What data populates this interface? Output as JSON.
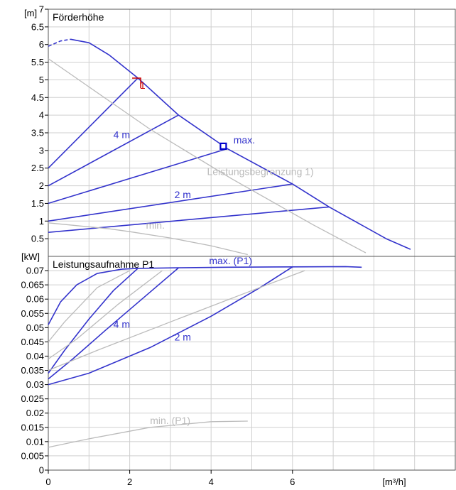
{
  "chart_data": [
    {
      "type": "line",
      "title": "Förderhöhe",
      "ylabel": "[m]",
      "xlabel": "[m³/h]",
      "xlim": [
        0,
        10
      ],
      "ylim": [
        0,
        7
      ],
      "x_ticks": [
        "0",
        "2",
        "4",
        "6"
      ],
      "y_ticks": [
        "0.5",
        "1",
        "1.5",
        "2",
        "2.5",
        "3",
        "3.5",
        "4",
        "4.5",
        "5",
        "5.5",
        "6",
        "6.5",
        "7"
      ],
      "grid": true,
      "series": [
        {
          "name": "max.",
          "color": "#3333cc",
          "x": [
            0.55,
            1.0,
            1.5,
            2.2,
            3.2,
            4.4,
            6.0,
            6.9,
            8.3,
            8.9
          ],
          "y": [
            6.15,
            6.05,
            5.7,
            5.05,
            4.0,
            3.05,
            2.05,
            1.4,
            0.5,
            0.2
          ]
        },
        {
          "name": "max.-dashed",
          "color": "#3333cc",
          "dashed": true,
          "x": [
            0.0,
            0.3,
            0.55
          ],
          "y": [
            5.95,
            6.1,
            6.15
          ]
        },
        {
          "name": "4 m",
          "color": "#3333cc",
          "x": [
            0.0,
            3.2
          ],
          "y": [
            2.0,
            4.0
          ]
        },
        {
          "name": "4 m",
          "color": "#3333cc",
          "x": [
            0.0,
            2.2
          ],
          "y": [
            2.5,
            5.05
          ]
        },
        {
          "name": "",
          "color": "#3333cc",
          "x": [
            0.0,
            4.4
          ],
          "y": [
            1.5,
            3.05
          ]
        },
        {
          "name": "2 m",
          "color": "#3333cc",
          "x": [
            0.0,
            6.0
          ],
          "y": [
            1.0,
            2.05
          ]
        },
        {
          "name": "",
          "color": "#3333cc",
          "x": [
            0.0,
            6.9
          ],
          "y": [
            0.68,
            1.4
          ]
        },
        {
          "name": "Leistungsbegrenzung 1)",
          "color": "#bbbbbb",
          "x": [
            0.0,
            1.0,
            2.5,
            4.5,
            6.5,
            7.8
          ],
          "y": [
            5.6,
            4.8,
            3.6,
            2.2,
            0.9,
            0.1
          ]
        },
        {
          "name": "min.",
          "color": "#bbbbbb",
          "x": [
            0.0,
            1.5,
            2.0,
            3.0,
            4.0,
            4.9
          ],
          "y": [
            0.95,
            0.78,
            0.7,
            0.52,
            0.3,
            0.05
          ]
        }
      ],
      "annotations": [
        {
          "text": "1",
          "x": 2.25,
          "y": 4.75,
          "color": "#cc0000"
        },
        {
          "text": "max.",
          "x": 4.55,
          "y": 3.2,
          "color": "#3333cc"
        },
        {
          "text": "4 m",
          "x": 1.6,
          "y": 3.35,
          "color": "#3333cc"
        },
        {
          "text": "2 m",
          "x": 3.1,
          "y": 1.65,
          "color": "#3333cc"
        },
        {
          "text": "Leistungsbegrenzung 1)",
          "x": 3.9,
          "y": 2.3,
          "color": "#bbbbbb"
        },
        {
          "text": "min.",
          "x": 2.4,
          "y": 0.78,
          "color": "#bbbbbb"
        }
      ],
      "markers": [
        {
          "shape": "square",
          "x": 4.3,
          "y": 3.12,
          "color": "#0000cc"
        }
      ]
    },
    {
      "type": "line",
      "title": "Leistungsaufnahme P1",
      "ylabel": "[kW]",
      "xlabel": "[m³/h]",
      "xlim": [
        0,
        10
      ],
      "ylim": [
        0,
        0.075
      ],
      "x_ticks": [
        "0",
        "2",
        "4",
        "6"
      ],
      "y_ticks": [
        "0",
        "0.005",
        "0.01",
        "0.015",
        "0.02",
        "0.025",
        "0.03",
        "0.035",
        "0.04",
        "0.045",
        "0.05",
        "0.055",
        "0.06",
        "0.065",
        "0.07"
      ],
      "grid": true,
      "series": [
        {
          "name": "max. (P1)",
          "color": "#3333cc",
          "x": [
            0.0,
            0.3,
            0.7,
            1.2,
            1.8,
            2.2,
            3.2,
            4.4,
            6.0,
            7.3,
            7.7
          ],
          "y": [
            0.051,
            0.059,
            0.065,
            0.069,
            0.0705,
            0.0708,
            0.071,
            0.0712,
            0.0713,
            0.0714,
            0.0712
          ]
        },
        {
          "name": "4 m",
          "color": "#3333cc",
          "x": [
            0.0,
            0.4,
            1.0,
            1.6,
            2.2
          ],
          "y": [
            0.034,
            0.042,
            0.053,
            0.063,
            0.0708
          ]
        },
        {
          "name": "4 m",
          "color": "#3333cc",
          "x": [
            0.0,
            0.6,
            1.4,
            2.3,
            3.2
          ],
          "y": [
            0.032,
            0.039,
            0.049,
            0.06,
            0.071
          ]
        },
        {
          "name": "2 m",
          "color": "#3333cc",
          "x": [
            0.0,
            1.0,
            2.5,
            4.0,
            5.2,
            6.0
          ],
          "y": [
            0.03,
            0.034,
            0.043,
            0.054,
            0.064,
            0.0713
          ]
        },
        {
          "name": "",
          "color": "#bbbbbb",
          "x": [
            0.0,
            0.4,
            1.2,
            2.0
          ],
          "y": [
            0.045,
            0.052,
            0.064,
            0.07
          ]
        },
        {
          "name": "",
          "color": "#bbbbbb",
          "x": [
            0.0,
            0.7,
            1.7,
            2.8
          ],
          "y": [
            0.039,
            0.046,
            0.058,
            0.07
          ]
        },
        {
          "name": "",
          "color": "#bbbbbb",
          "x": [
            0.0,
            1.2,
            3.0,
            5.0,
            6.3
          ],
          "y": [
            0.035,
            0.042,
            0.052,
            0.063,
            0.07
          ]
        },
        {
          "name": "min. (P1)",
          "color": "#bbbbbb",
          "x": [
            0.0,
            1.0,
            2.5,
            4.0,
            4.9
          ],
          "y": [
            0.008,
            0.011,
            0.015,
            0.017,
            0.0172
          ]
        }
      ],
      "annotations": [
        {
          "text": "max. (P1)",
          "x": 3.95,
          "y": 0.0722,
          "color": "#3333cc"
        },
        {
          "text": "4 m",
          "x": 1.6,
          "y": 0.05,
          "color": "#3333cc"
        },
        {
          "text": "2 m",
          "x": 3.1,
          "y": 0.0455,
          "color": "#3333cc"
        },
        {
          "text": "min. (P1)",
          "x": 2.5,
          "y": 0.0162,
          "color": "#bbbbbb"
        }
      ]
    }
  ]
}
